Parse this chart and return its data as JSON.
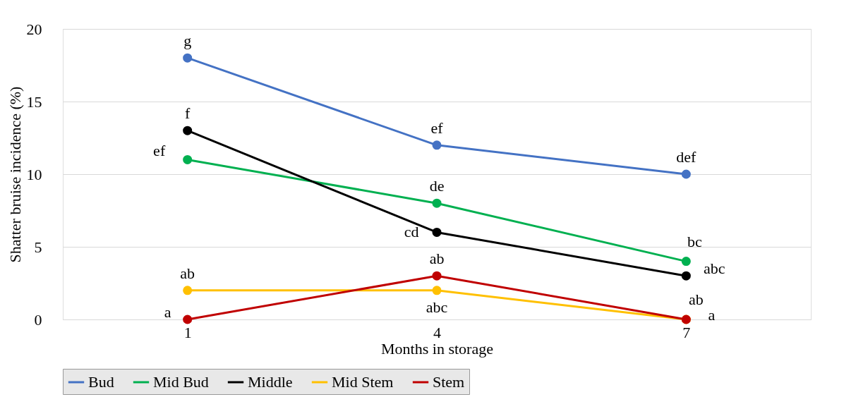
{
  "chart_data": {
    "type": "line",
    "xlabel": "Months in storage",
    "ylabel": "Shatter bruise incidence (%)",
    "categories": [
      "1",
      "4",
      "7"
    ],
    "series": [
      {
        "name": "Bud",
        "color": "#4472c4",
        "values": [
          18,
          12,
          10
        ]
      },
      {
        "name": "Mid Bud",
        "color": "#00b050",
        "values": [
          11,
          8,
          4
        ]
      },
      {
        "name": "Middle",
        "color": "#000000",
        "values": [
          13,
          6,
          3
        ]
      },
      {
        "name": "Mid Stem",
        "color": "#ffc000",
        "values": [
          2,
          2,
          0
        ]
      },
      {
        "name": "Stem",
        "color": "#c00000",
        "values": [
          0,
          3,
          0
        ]
      }
    ],
    "ylim": [
      0,
      20
    ],
    "yticks": [
      0,
      5,
      10,
      15,
      20
    ],
    "grid": "y",
    "legend": "bottom",
    "marker": "circle",
    "annotations": [
      {
        "text": "g",
        "x": "1",
        "y": 18
      },
      {
        "text": "ef",
        "x": "4",
        "y": 12
      },
      {
        "text": "def",
        "x": "7",
        "y": 10
      },
      {
        "text": "ef",
        "x": "1",
        "y": 11
      },
      {
        "text": "de",
        "x": "4",
        "y": 8
      },
      {
        "text": "bc",
        "x": "7",
        "y": 4
      },
      {
        "text": "f",
        "x": "1",
        "y": 13
      },
      {
        "text": "cd",
        "x": "4",
        "y": 6
      },
      {
        "text": "abc",
        "x": "7",
        "y": 3
      },
      {
        "text": "ab",
        "x": "1",
        "y": 2
      },
      {
        "text": "abc",
        "x": "4",
        "y": 2
      },
      {
        "text": "ab",
        "x": "7",
        "y": 0
      },
      {
        "text": "a",
        "x": "1",
        "y": 0
      },
      {
        "text": "ab",
        "x": "4",
        "y": 3
      },
      {
        "text": "a",
        "x": "7",
        "y": 0
      }
    ]
  }
}
